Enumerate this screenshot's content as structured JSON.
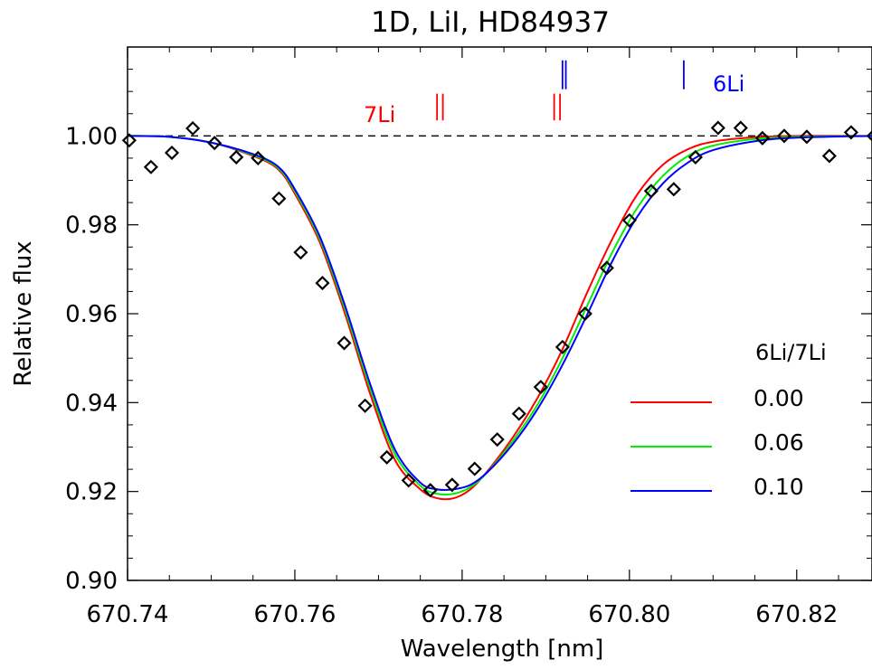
{
  "chart_data": {
    "type": "line",
    "title": "1D, LiI, HD84937",
    "xlabel": "Wavelength [nm]",
    "ylabel": "Relative flux",
    "xlim": [
      670.74,
      670.829
    ],
    "ylim": [
      0.9,
      1.02
    ],
    "x_ticks": [
      670.74,
      670.76,
      670.78,
      670.8,
      670.82
    ],
    "x_tick_labels": [
      "670.74",
      "670.76",
      "670.78",
      "670.80",
      "670.82"
    ],
    "y_ticks": [
      0.9,
      0.92,
      0.94,
      0.96,
      0.98,
      1.0
    ],
    "y_tick_labels": [
      "0.90",
      "0.92",
      "0.94",
      "0.96",
      "0.98",
      "1.00"
    ],
    "continuum_level": 1.0,
    "legend": {
      "title": "6Li/7Li",
      "placement": "lower-right",
      "entries": [
        {
          "label": "0.00",
          "color": "#ff0000"
        },
        {
          "label": "0.06",
          "color": "#00ee00"
        },
        {
          "label": "0.10",
          "color": "#0000ff"
        }
      ]
    },
    "series": [
      {
        "color": "#ff0000",
        "x": [
          670.74,
          670.745,
          670.75,
          670.755,
          670.758,
          670.76,
          670.763,
          670.766,
          670.769,
          670.772,
          670.775,
          670.777,
          670.779,
          670.781,
          670.783,
          670.786,
          670.789,
          670.792,
          670.795,
          670.798,
          670.801,
          670.804,
          670.807,
          670.81,
          670.815,
          670.82,
          670.829
        ],
        "y": [
          1.0,
          0.9998,
          0.9985,
          0.9955,
          0.9925,
          0.987,
          0.976,
          0.96,
          0.942,
          0.927,
          0.9205,
          0.9185,
          0.9185,
          0.9205,
          0.9245,
          0.932,
          0.941,
          0.952,
          0.965,
          0.977,
          0.987,
          0.9935,
          0.997,
          0.9987,
          0.9997,
          1.0,
          1.0
        ]
      },
      {
        "color": "#00ee00",
        "x": [
          670.74,
          670.745,
          670.75,
          670.755,
          670.758,
          670.76,
          670.763,
          670.766,
          670.769,
          670.772,
          670.775,
          670.777,
          670.779,
          670.781,
          670.783,
          670.786,
          670.789,
          670.792,
          670.795,
          670.798,
          670.801,
          670.804,
          670.807,
          670.81,
          670.815,
          670.82,
          670.829
        ],
        "y": [
          1.0,
          0.9998,
          0.9985,
          0.9957,
          0.9928,
          0.9875,
          0.9767,
          0.961,
          0.9432,
          0.9283,
          0.9213,
          0.9195,
          0.9195,
          0.921,
          0.9243,
          0.9312,
          0.9395,
          0.95,
          0.962,
          0.974,
          0.984,
          0.991,
          0.9955,
          0.9978,
          0.9993,
          0.9998,
          1.0
        ]
      },
      {
        "color": "#0000ff",
        "x": [
          670.74,
          670.745,
          670.75,
          670.755,
          670.758,
          670.76,
          670.763,
          670.766,
          670.769,
          670.772,
          670.775,
          670.777,
          670.779,
          670.781,
          670.783,
          670.786,
          670.789,
          670.792,
          670.795,
          670.798,
          670.801,
          670.804,
          670.807,
          670.81,
          670.815,
          670.82,
          670.829
        ],
        "y": [
          1.0,
          0.9998,
          0.9985,
          0.9959,
          0.9931,
          0.988,
          0.9773,
          0.9618,
          0.9442,
          0.9293,
          0.922,
          0.9205,
          0.9205,
          0.9215,
          0.9243,
          0.9305,
          0.9385,
          0.9485,
          0.96,
          0.972,
          0.982,
          0.9893,
          0.994,
          0.9968,
          0.9988,
          0.9996,
          1.0
        ]
      }
    ],
    "observed_points": {
      "marker": "diamond",
      "x": [
        670.7402,
        670.7428,
        670.7453,
        670.7478,
        670.7504,
        670.753,
        670.7556,
        670.7581,
        670.7607,
        670.7633,
        670.7659,
        670.7684,
        670.771,
        670.7736,
        670.7762,
        670.7788,
        670.7815,
        670.7842,
        670.7868,
        670.7894,
        670.792,
        670.7947,
        670.7973,
        670.8,
        670.8026,
        670.8053,
        670.8079,
        670.8106,
        670.8133,
        670.8159,
        670.8185,
        670.8212,
        670.8239,
        670.8265,
        670.8292
      ],
      "y": [
        0.999,
        0.993,
        0.9962,
        1.0017,
        0.9984,
        0.9952,
        0.995,
        0.9859,
        0.9738,
        0.9669,
        0.9534,
        0.9393,
        0.9277,
        0.9225,
        0.9203,
        0.9215,
        0.9251,
        0.9317,
        0.9375,
        0.9435,
        0.9525,
        0.96,
        0.9703,
        0.981,
        0.9876,
        0.988,
        0.9952,
        1.0018,
        1.0018,
        0.9995,
        1.0,
        0.9998,
        0.9955,
        1.0008,
        1.0
      ]
    },
    "annotations": [
      {
        "text": "7Li",
        "color": "#ff0000",
        "lines_x": [
          670.777,
          670.7777,
          670.791,
          670.7917
        ],
        "y_range": [
          1.0035,
          1.0095
        ]
      },
      {
        "text": "6Li",
        "color": "#0000ff",
        "lines_x": [
          670.792,
          670.7924,
          670.8065
        ],
        "y_range": [
          1.0105,
          1.017
        ]
      }
    ]
  }
}
